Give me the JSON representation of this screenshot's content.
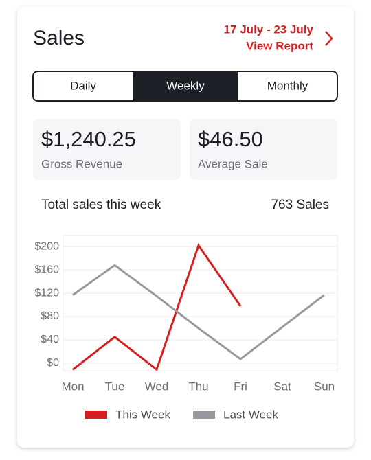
{
  "header": {
    "title": "Sales",
    "date_range": "17 July - 23 July",
    "link": "View Report"
  },
  "tabs": [
    {
      "label": "Daily",
      "active": false
    },
    {
      "label": "Weekly",
      "active": true
    },
    {
      "label": "Monthly",
      "active": false
    }
  ],
  "stats": [
    {
      "value": "$1,240.25",
      "label": "Gross Revenue"
    },
    {
      "value": "$46.50",
      "label": "Average Sale"
    }
  ],
  "summary": {
    "label": "Total sales this week",
    "value": "763 Sales"
  },
  "chart_data": {
    "type": "line",
    "categories": [
      "Mon",
      "Tue",
      "Wed",
      "Thu",
      "Fri",
      "Sat",
      "Sun"
    ],
    "series": [
      {
        "name": "This Week",
        "color": "#d81f1f",
        "values": [
          -11,
          45,
          -11,
          202,
          98,
          null,
          null
        ]
      },
      {
        "name": "Last Week",
        "color": "#98989f",
        "values": [
          117,
          168,
          115,
          60,
          7,
          62,
          117
        ]
      }
    ],
    "ylim": [
      -13,
      219
    ],
    "yticks": [
      {
        "value": 0,
        "label": "$0"
      },
      {
        "value": 40,
        "label": "$40"
      },
      {
        "value": 80,
        "label": "$80"
      },
      {
        "value": 120,
        "label": "$120"
      },
      {
        "value": 160,
        "label": "$160"
      },
      {
        "value": 200,
        "label": "$200"
      }
    ],
    "grid": true,
    "legend": "bottom"
  }
}
